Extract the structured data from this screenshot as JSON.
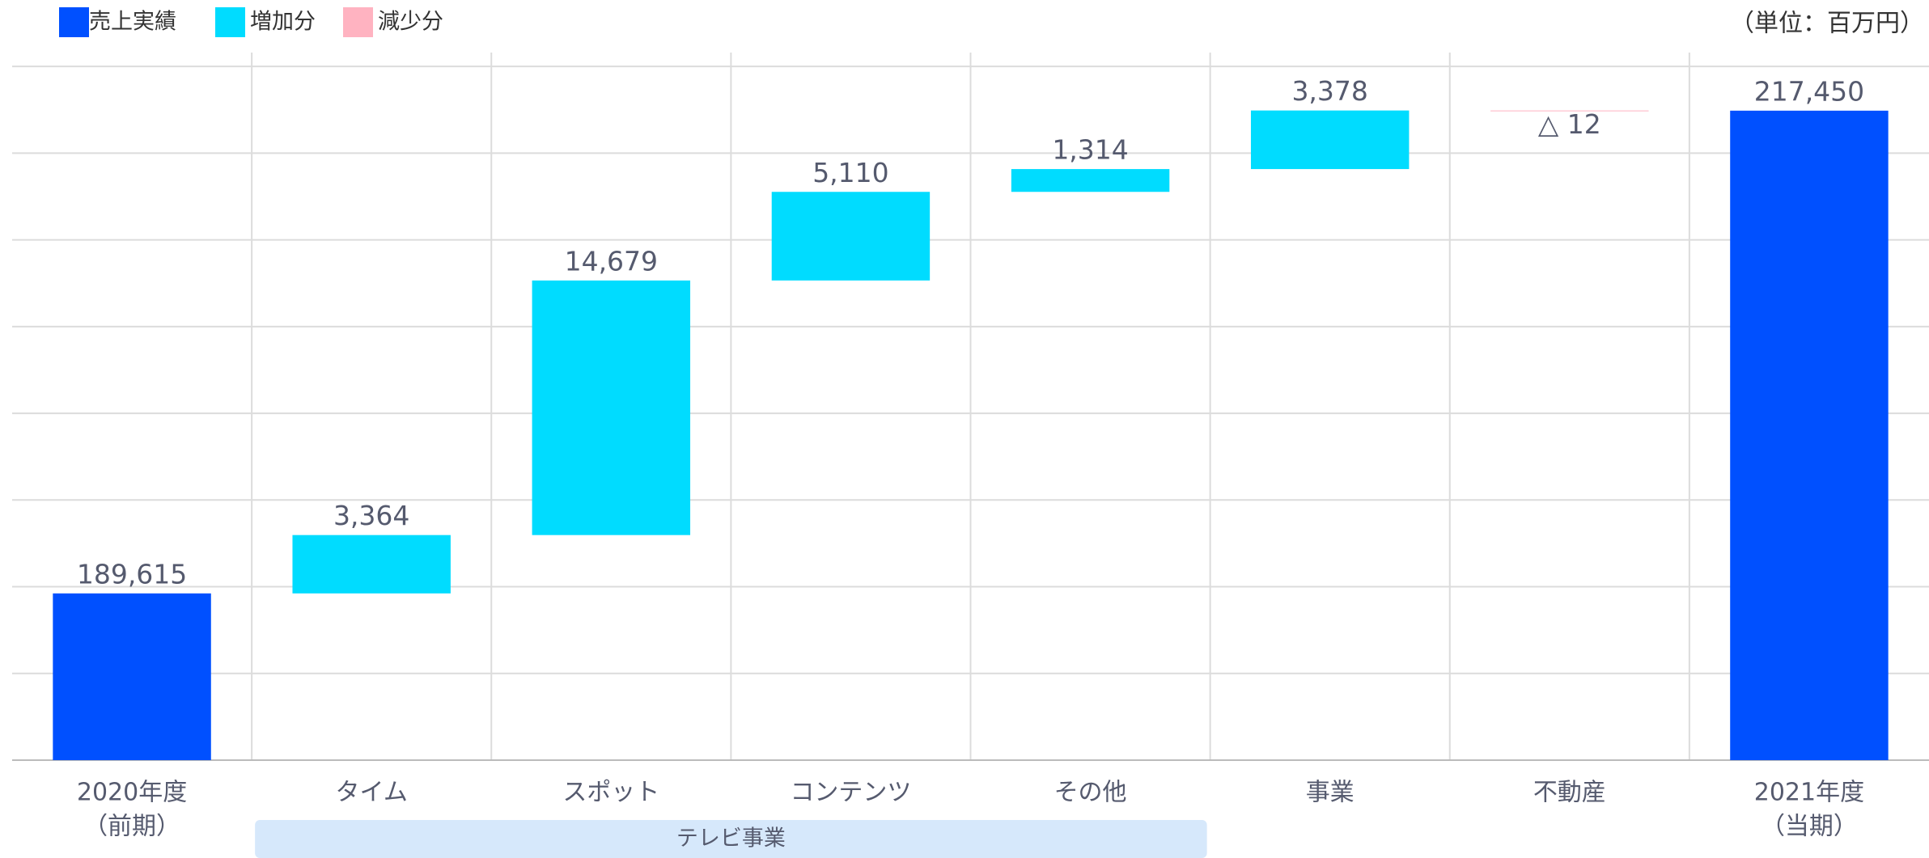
{
  "chart_data": {
    "type": "waterfall",
    "unit_label": "（単位：百万円）",
    "categories": [
      [
        "2020年度",
        "（前期）"
      ],
      [
        "タイム"
      ],
      [
        "スポット"
      ],
      [
        "コンテンツ"
      ],
      [
        "その他"
      ],
      [
        "事業"
      ],
      [
        "不動産"
      ],
      [
        "2021年度",
        "（当期）"
      ]
    ],
    "values": [
      189615,
      3364,
      14679,
      5110,
      1314,
      3378,
      -12,
      217450
    ],
    "value_labels": [
      "189,615",
      "3,364",
      "14,679",
      "5,110",
      "1,314",
      "3,378",
      "△ 12",
      "217,450"
    ],
    "measure": [
      "absolute",
      "relative",
      "relative",
      "relative",
      "relative",
      "relative",
      "relative",
      "absolute"
    ],
    "series": [
      {
        "name": "売上実績",
        "color": "#0050ff"
      },
      {
        "name": "増加分",
        "color": "#00dcff"
      },
      {
        "name": "減少分",
        "color": "#ffb3c1"
      }
    ],
    "group": {
      "label": "テレビ事業",
      "from": 1,
      "to": 4
    },
    "ylim": [
      180000,
      220800
    ],
    "yticks": [
      180000,
      185000,
      190000,
      195000,
      200000,
      205000,
      210000,
      215000,
      220000
    ],
    "grid": true
  }
}
